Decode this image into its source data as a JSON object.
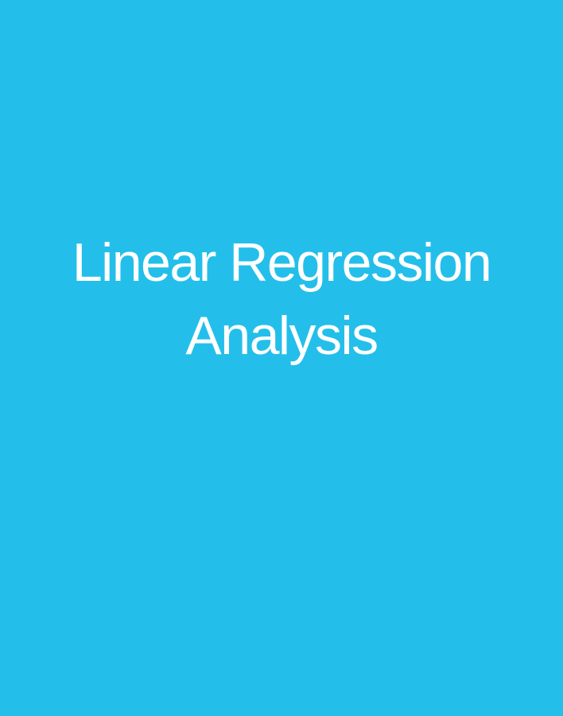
{
  "cover": {
    "title_line_1": "Linear Regression",
    "title_line_2": "Analysis"
  },
  "colors": {
    "background": "#23BFEA",
    "text": "#FFFFFF"
  }
}
